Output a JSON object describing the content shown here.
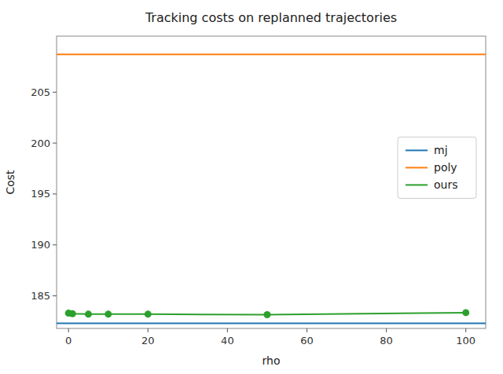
{
  "chart_data": {
    "type": "line",
    "title": "Tracking costs on replanned trajectories",
    "x_label": "rho",
    "y_label": "Cost",
    "xlim": [
      -3,
      105
    ],
    "ylim": [
      181.8,
      210.5
    ],
    "xticks": [
      0,
      20,
      40,
      60,
      80,
      100
    ],
    "yticks": [
      185,
      190,
      195,
      200,
      205
    ],
    "grid": false,
    "legend": "right",
    "series": [
      {
        "name": "mj",
        "type": "hline",
        "color": "#1f77b4",
        "values": [
          182.3
        ]
      },
      {
        "name": "poly",
        "type": "hline",
        "color": "#ff7f0e",
        "values": [
          208.7
        ]
      },
      {
        "name": "ours",
        "type": "line",
        "color": "#2ca02c",
        "marker": "circle",
        "x": [
          0,
          1,
          5,
          10,
          20,
          50,
          100
        ],
        "values": [
          183.3,
          183.25,
          183.2,
          183.2,
          183.2,
          183.15,
          183.35
        ]
      }
    ]
  }
}
